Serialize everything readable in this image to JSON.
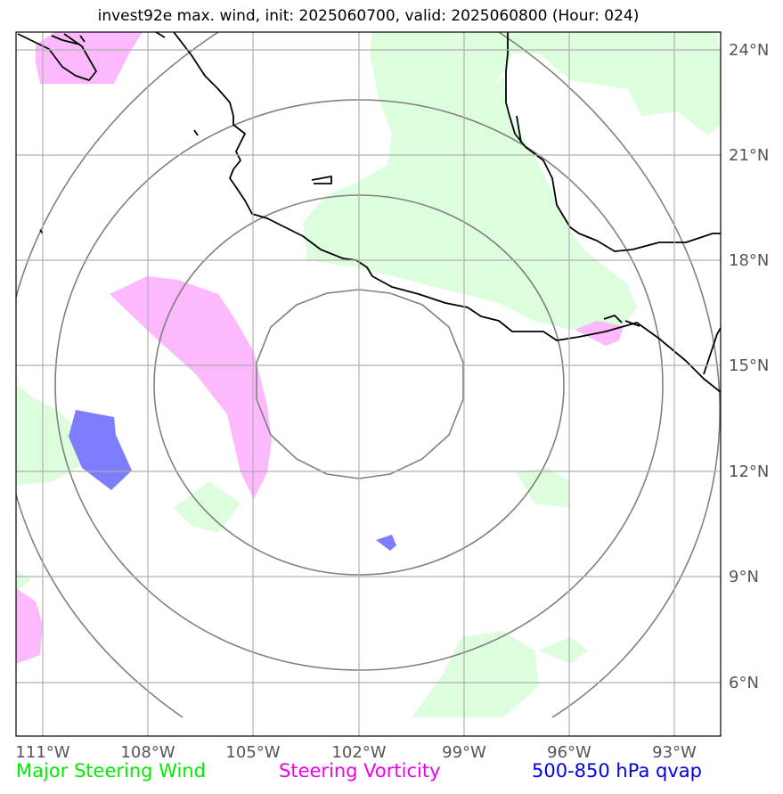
{
  "title": "invest92e max. wind, init: 2025060700, valid: 2025060800 (Hour: 024)",
  "x_ticks": [
    "111°W",
    "108°W",
    "105°W",
    "102°W",
    "99°W",
    "96°W",
    "93°W"
  ],
  "y_ticks": [
    "24°N",
    "21°N",
    "18°N",
    "15°N",
    "12°N",
    "9°N",
    "6°N"
  ],
  "legend": {
    "wind": "Major Steering Wind",
    "vorticity": "Steering Vorticity",
    "qvap": "500-850 hPa qvap"
  },
  "colors": {
    "wind": "#00ee00",
    "vorticity": "#ee00ee",
    "qvap": "#0000ee",
    "wind_fill": "#dcfedc",
    "vorticity_fill": "#fdb9fd",
    "qvap_fill": "#7d7dfd"
  }
}
